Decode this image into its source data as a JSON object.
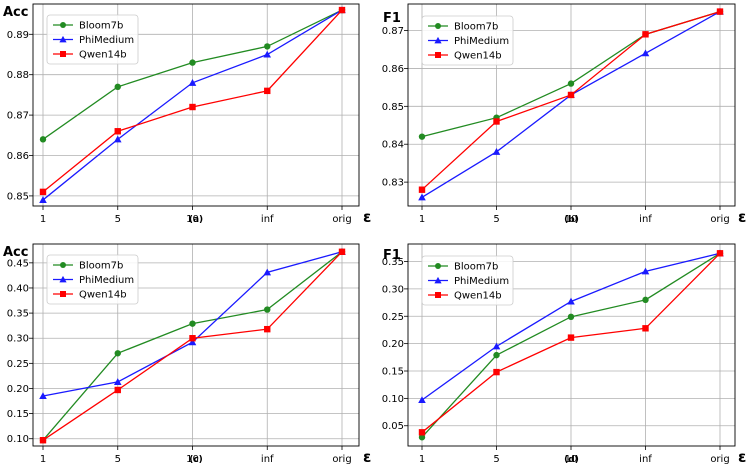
{
  "series_styles": [
    {
      "name": "Bloom7b",
      "color": "#228b22",
      "marker": "circle"
    },
    {
      "name": "PhiMedium",
      "color": "#1a1aff",
      "marker": "triangle"
    },
    {
      "name": "Qwen14b",
      "color": "#ff0000",
      "marker": "square"
    }
  ],
  "chart_data": [
    {
      "type": "line",
      "title": "Acc",
      "subtitle": "(a)",
      "xlabel": "ε",
      "categories": [
        "1",
        "5",
        "10",
        "inf",
        "orig"
      ],
      "ylim": [
        0.8475,
        0.8975
      ],
      "yticks": [
        "0.85",
        "0.86",
        "0.87",
        "0.88",
        "0.89"
      ],
      "grid": true,
      "legend": "top-left",
      "series": [
        {
          "name": "Bloom7b",
          "values": [
            0.864,
            0.877,
            0.883,
            0.887,
            0.896
          ]
        },
        {
          "name": "PhiMedium",
          "values": [
            0.849,
            0.864,
            0.878,
            0.885,
            0.896
          ]
        },
        {
          "name": "Qwen14b",
          "values": [
            0.851,
            0.866,
            0.872,
            0.876,
            0.896
          ]
        }
      ]
    },
    {
      "type": "line",
      "title": "F1",
      "subtitle": "(b)",
      "xlabel": "ε",
      "categories": [
        "1",
        "5",
        "10",
        "inf",
        "orig"
      ],
      "ylim": [
        0.8237,
        0.877
      ],
      "yticks": [
        "0.83",
        "0.84",
        "0.85",
        "0.86",
        "0.87"
      ],
      "grid": true,
      "legend": "top-left",
      "series": [
        {
          "name": "Bloom7b",
          "values": [
            0.842,
            0.847,
            0.856,
            0.869,
            0.875
          ]
        },
        {
          "name": "PhiMedium",
          "values": [
            0.826,
            0.838,
            0.853,
            0.864,
            0.875
          ]
        },
        {
          "name": "Qwen14b",
          "values": [
            0.828,
            0.846,
            0.853,
            0.869,
            0.875
          ]
        }
      ]
    },
    {
      "type": "line",
      "title": "Acc",
      "subtitle": "(c)",
      "xlabel": "ε",
      "categories": [
        "1",
        "5",
        "10",
        "inf",
        "orig"
      ],
      "ylim": [
        0.0855,
        0.4875
      ],
      "yticks": [
        "0.10",
        "0.15",
        "0.20",
        "0.25",
        "0.30",
        "0.35",
        "0.40",
        "0.45"
      ],
      "grid": true,
      "legend": "top-left",
      "series": [
        {
          "name": "Bloom7b",
          "values": [
            0.097,
            0.27,
            0.329,
            0.357,
            0.472
          ]
        },
        {
          "name": "PhiMedium",
          "values": [
            0.185,
            0.213,
            0.292,
            0.431,
            0.472
          ]
        },
        {
          "name": "Qwen14b",
          "values": [
            0.097,
            0.197,
            0.3,
            0.318,
            0.472
          ]
        }
      ]
    },
    {
      "type": "line",
      "title": "F1",
      "subtitle": "(d)",
      "xlabel": "ε",
      "categories": [
        "1",
        "5",
        "10",
        "inf",
        "orig"
      ],
      "ylim": [
        0.013,
        0.382
      ],
      "yticks": [
        "0.05",
        "0.10",
        "0.15",
        "0.20",
        "0.25",
        "0.30",
        "0.35"
      ],
      "grid": true,
      "legend": "top-left",
      "series": [
        {
          "name": "Bloom7b",
          "values": [
            0.029,
            0.179,
            0.249,
            0.28,
            0.365
          ]
        },
        {
          "name": "PhiMedium",
          "values": [
            0.097,
            0.195,
            0.277,
            0.332,
            0.365
          ]
        },
        {
          "name": "Qwen14b",
          "values": [
            0.038,
            0.148,
            0.211,
            0.228,
            0.365
          ]
        }
      ]
    }
  ]
}
